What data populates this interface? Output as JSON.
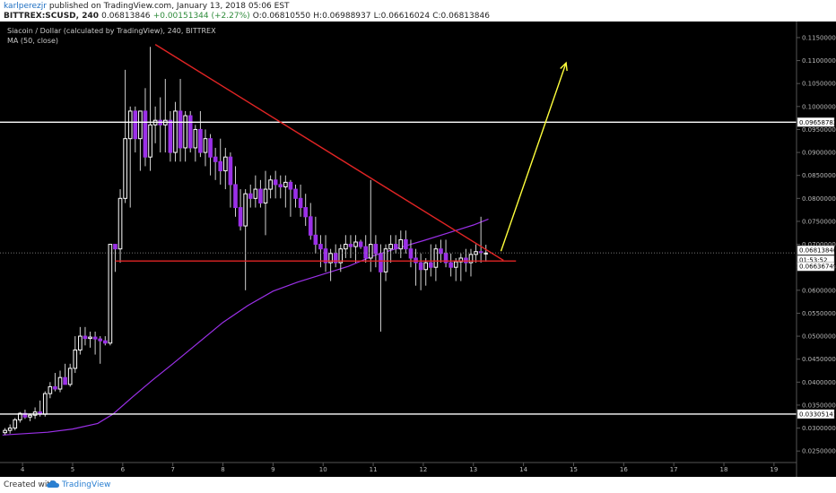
{
  "header": {
    "author": "karlperezjr",
    "published": "published on TradingView.com, January 13, 2018 05:06 EST",
    "symbol": "BITTREX:SCUSD, 240",
    "ohlc_line": "0.06813846",
    "change": "+0.00151344 (+2.27%)",
    "open": "O:0.06810550",
    "high": "H:0.06988937",
    "low": "L:0.06616024",
    "close": "C:0.06813846"
  },
  "legend": {
    "title": "Siacoin / Dollar (calculated by TradingView), 240, BITTREX",
    "indicator": "MA (50, close)"
  },
  "footer": {
    "created_with": "Created with",
    "brand": "TradingView"
  },
  "colors": {
    "background": "#000000",
    "bull": "#ffffff",
    "bear": "#9b30e8",
    "ma": "#9b30e8",
    "support_resistance": "#ffffff",
    "trendline": "#e02424",
    "arrow": "#ffff3c"
  },
  "chart_data": {
    "type": "candlestick",
    "title": "Siacoin / Dollar (calculated by TradingView), 240, BITTREX",
    "x_axis": {
      "unit": "day_of_january_2018",
      "range": [
        3.55,
        19.45
      ],
      "ticks": [
        "4",
        "5",
        "6",
        "7",
        "8",
        "9",
        "10",
        "11",
        "12",
        "13",
        "14",
        "15",
        "16",
        "17",
        "18",
        "19"
      ]
    },
    "y_axis": {
      "range": [
        0.0225,
        0.1185
      ],
      "ticks": [
        "0.11500000",
        "0.11000000",
        "0.10500000",
        "0.10000000",
        "0.09500000",
        "0.09000000",
        "0.08500000",
        "0.08000000",
        "0.07500000",
        "0.07000000",
        "0.06500000",
        "0.06000000",
        "0.05500000",
        "0.05000000",
        "0.04500000",
        "0.04000000",
        "0.03500000",
        "0.03000000",
        "0.02500000"
      ]
    },
    "price_labels": [
      "0.09658783",
      "0.06813846",
      "01:53:52",
      "0.06636749",
      "0.03305141"
    ],
    "horizontal_levels": [
      {
        "value": 0.09658783,
        "color": "#ffffff"
      },
      {
        "value": 0.03305141,
        "color": "#ffffff"
      },
      {
        "value": 0.06636749,
        "color": "#e02424"
      }
    ],
    "trendlines": [
      {
        "x": [
          6.65,
          13.6
        ],
        "y": [
          0.1135,
          0.0665
        ],
        "color": "#e02424"
      },
      {
        "x": [
          5.85,
          13.85
        ],
        "y": [
          0.06365,
          0.06365
        ],
        "color": "#e02424"
      }
    ],
    "projection_arrow": {
      "x": [
        13.55,
        14.85
      ],
      "y": [
        0.0685,
        0.1095
      ],
      "color": "#ffff3c"
    },
    "ma_50": {
      "x": [
        3.6,
        4.5,
        5.0,
        5.5,
        5.8,
        6.2,
        6.6,
        7.0,
        7.5,
        8.0,
        8.5,
        9.0,
        9.5,
        10.0,
        10.5,
        11.0,
        11.5,
        12.0,
        12.5,
        13.0,
        13.3
      ],
      "y": [
        0.0285,
        0.0291,
        0.0298,
        0.031,
        0.033,
        0.0368,
        0.0405,
        0.044,
        0.0485,
        0.053,
        0.0567,
        0.0598,
        0.0618,
        0.0635,
        0.0652,
        0.0675,
        0.0692,
        0.0708,
        0.0725,
        0.0742,
        0.0755
      ]
    },
    "candles": [
      {
        "t": 3.65,
        "o": 0.029,
        "h": 0.03,
        "l": 0.0285,
        "c": 0.0295
      },
      {
        "t": 3.75,
        "o": 0.0295,
        "h": 0.0308,
        "l": 0.0288,
        "c": 0.03
      },
      {
        "t": 3.85,
        "o": 0.03,
        "h": 0.0322,
        "l": 0.0295,
        "c": 0.0318
      },
      {
        "t": 3.95,
        "o": 0.0318,
        "h": 0.0335,
        "l": 0.0312,
        "c": 0.0332
      },
      {
        "t": 4.05,
        "o": 0.0332,
        "h": 0.034,
        "l": 0.032,
        "c": 0.0324
      },
      {
        "t": 4.15,
        "o": 0.0324,
        "h": 0.0332,
        "l": 0.0315,
        "c": 0.0328
      },
      {
        "t": 4.25,
        "o": 0.0328,
        "h": 0.0345,
        "l": 0.032,
        "c": 0.0335
      },
      {
        "t": 4.35,
        "o": 0.0335,
        "h": 0.036,
        "l": 0.0325,
        "c": 0.033
      },
      {
        "t": 4.45,
        "o": 0.033,
        "h": 0.038,
        "l": 0.0325,
        "c": 0.0375
      },
      {
        "t": 4.55,
        "o": 0.0375,
        "h": 0.04,
        "l": 0.0365,
        "c": 0.039
      },
      {
        "t": 4.65,
        "o": 0.039,
        "h": 0.042,
        "l": 0.038,
        "c": 0.0385
      },
      {
        "t": 4.75,
        "o": 0.0385,
        "h": 0.0425,
        "l": 0.0378,
        "c": 0.041
      },
      {
        "t": 4.85,
        "o": 0.041,
        "h": 0.044,
        "l": 0.0398,
        "c": 0.0395
      },
      {
        "t": 4.95,
        "o": 0.0395,
        "h": 0.044,
        "l": 0.039,
        "c": 0.043
      },
      {
        "t": 5.05,
        "o": 0.043,
        "h": 0.05,
        "l": 0.042,
        "c": 0.047
      },
      {
        "t": 5.15,
        "o": 0.047,
        "h": 0.052,
        "l": 0.046,
        "c": 0.05
      },
      {
        "t": 5.25,
        "o": 0.05,
        "h": 0.052,
        "l": 0.048,
        "c": 0.0495
      },
      {
        "t": 5.35,
        "o": 0.0495,
        "h": 0.051,
        "l": 0.0475,
        "c": 0.0498
      },
      {
        "t": 5.45,
        "o": 0.0498,
        "h": 0.051,
        "l": 0.046,
        "c": 0.0494
      },
      {
        "t": 5.55,
        "o": 0.0494,
        "h": 0.05,
        "l": 0.044,
        "c": 0.049
      },
      {
        "t": 5.65,
        "o": 0.049,
        "h": 0.05,
        "l": 0.048,
        "c": 0.0485
      },
      {
        "t": 5.75,
        "o": 0.0485,
        "h": 0.07,
        "l": 0.048,
        "c": 0.07
      },
      {
        "t": 5.85,
        "o": 0.07,
        "h": 0.07,
        "l": 0.064,
        "c": 0.069
      },
      {
        "t": 5.95,
        "o": 0.069,
        "h": 0.082,
        "l": 0.066,
        "c": 0.08
      },
      {
        "t": 6.05,
        "o": 0.08,
        "h": 0.108,
        "l": 0.079,
        "c": 0.093
      },
      {
        "t": 6.15,
        "o": 0.093,
        "h": 0.1,
        "l": 0.078,
        "c": 0.099
      },
      {
        "t": 6.25,
        "o": 0.099,
        "h": 0.1,
        "l": 0.09,
        "c": 0.093
      },
      {
        "t": 6.35,
        "o": 0.093,
        "h": 0.099,
        "l": 0.086,
        "c": 0.099
      },
      {
        "t": 6.45,
        "o": 0.099,
        "h": 0.104,
        "l": 0.087,
        "c": 0.089
      },
      {
        "t": 6.55,
        "o": 0.089,
        "h": 0.113,
        "l": 0.086,
        "c": 0.096
      },
      {
        "t": 6.65,
        "o": 0.096,
        "h": 0.1,
        "l": 0.092,
        "c": 0.097
      },
      {
        "t": 6.75,
        "o": 0.097,
        "h": 0.102,
        "l": 0.09,
        "c": 0.096
      },
      {
        "t": 6.85,
        "o": 0.096,
        "h": 0.106,
        "l": 0.09,
        "c": 0.097
      },
      {
        "t": 6.95,
        "o": 0.097,
        "h": 0.099,
        "l": 0.088,
        "c": 0.09
      },
      {
        "t": 7.05,
        "o": 0.09,
        "h": 0.101,
        "l": 0.088,
        "c": 0.099
      },
      {
        "t": 7.15,
        "o": 0.099,
        "h": 0.106,
        "l": 0.088,
        "c": 0.091
      },
      {
        "t": 7.25,
        "o": 0.091,
        "h": 0.099,
        "l": 0.088,
        "c": 0.098
      },
      {
        "t": 7.35,
        "o": 0.098,
        "h": 0.099,
        "l": 0.09,
        "c": 0.091
      },
      {
        "t": 7.45,
        "o": 0.091,
        "h": 0.096,
        "l": 0.088,
        "c": 0.095
      },
      {
        "t": 7.55,
        "o": 0.095,
        "h": 0.099,
        "l": 0.089,
        "c": 0.09
      },
      {
        "t": 7.65,
        "o": 0.09,
        "h": 0.095,
        "l": 0.087,
        "c": 0.093
      },
      {
        "t": 7.75,
        "o": 0.093,
        "h": 0.094,
        "l": 0.085,
        "c": 0.089
      },
      {
        "t": 7.85,
        "o": 0.089,
        "h": 0.091,
        "l": 0.084,
        "c": 0.088
      },
      {
        "t": 7.95,
        "o": 0.088,
        "h": 0.093,
        "l": 0.083,
        "c": 0.086
      },
      {
        "t": 8.05,
        "o": 0.086,
        "h": 0.091,
        "l": 0.082,
        "c": 0.089
      },
      {
        "t": 8.15,
        "o": 0.089,
        "h": 0.09,
        "l": 0.078,
        "c": 0.083
      },
      {
        "t": 8.25,
        "o": 0.083,
        "h": 0.087,
        "l": 0.076,
        "c": 0.078
      },
      {
        "t": 8.35,
        "o": 0.078,
        "h": 0.082,
        "l": 0.073,
        "c": 0.074
      },
      {
        "t": 8.45,
        "o": 0.074,
        "h": 0.082,
        "l": 0.06,
        "c": 0.081
      },
      {
        "t": 8.55,
        "o": 0.081,
        "h": 0.083,
        "l": 0.078,
        "c": 0.08
      },
      {
        "t": 8.65,
        "o": 0.08,
        "h": 0.085,
        "l": 0.078,
        "c": 0.082
      },
      {
        "t": 8.75,
        "o": 0.082,
        "h": 0.084,
        "l": 0.078,
        "c": 0.079
      },
      {
        "t": 8.85,
        "o": 0.079,
        "h": 0.086,
        "l": 0.072,
        "c": 0.082
      },
      {
        "t": 8.95,
        "o": 0.082,
        "h": 0.085,
        "l": 0.08,
        "c": 0.084
      },
      {
        "t": 9.05,
        "o": 0.084,
        "h": 0.086,
        "l": 0.08,
        "c": 0.083
      },
      {
        "t": 9.15,
        "o": 0.083,
        "h": 0.085,
        "l": 0.08,
        "c": 0.0825
      },
      {
        "t": 9.25,
        "o": 0.0825,
        "h": 0.085,
        "l": 0.078,
        "c": 0.0835
      },
      {
        "t": 9.35,
        "o": 0.0835,
        "h": 0.084,
        "l": 0.076,
        "c": 0.082
      },
      {
        "t": 9.45,
        "o": 0.082,
        "h": 0.083,
        "l": 0.078,
        "c": 0.08
      },
      {
        "t": 9.55,
        "o": 0.08,
        "h": 0.083,
        "l": 0.076,
        "c": 0.078
      },
      {
        "t": 9.65,
        "o": 0.078,
        "h": 0.081,
        "l": 0.074,
        "c": 0.076
      },
      {
        "t": 9.75,
        "o": 0.076,
        "h": 0.079,
        "l": 0.071,
        "c": 0.072
      },
      {
        "t": 9.85,
        "o": 0.072,
        "h": 0.076,
        "l": 0.068,
        "c": 0.07
      },
      {
        "t": 9.95,
        "o": 0.07,
        "h": 0.072,
        "l": 0.065,
        "c": 0.069
      },
      {
        "t": 10.05,
        "o": 0.069,
        "h": 0.072,
        "l": 0.064,
        "c": 0.066
      },
      {
        "t": 10.15,
        "o": 0.066,
        "h": 0.069,
        "l": 0.062,
        "c": 0.068
      },
      {
        "t": 10.25,
        "o": 0.068,
        "h": 0.07,
        "l": 0.065,
        "c": 0.066
      },
      {
        "t": 10.35,
        "o": 0.066,
        "h": 0.07,
        "l": 0.064,
        "c": 0.069
      },
      {
        "t": 10.45,
        "o": 0.069,
        "h": 0.072,
        "l": 0.067,
        "c": 0.07
      },
      {
        "t": 10.55,
        "o": 0.07,
        "h": 0.072,
        "l": 0.067,
        "c": 0.0695
      },
      {
        "t": 10.65,
        "o": 0.0695,
        "h": 0.072,
        "l": 0.066,
        "c": 0.0705
      },
      {
        "t": 10.75,
        "o": 0.0705,
        "h": 0.071,
        "l": 0.069,
        "c": 0.0695
      },
      {
        "t": 10.85,
        "o": 0.0695,
        "h": 0.072,
        "l": 0.066,
        "c": 0.067
      },
      {
        "t": 10.95,
        "o": 0.067,
        "h": 0.084,
        "l": 0.064,
        "c": 0.07
      },
      {
        "t": 11.05,
        "o": 0.07,
        "h": 0.072,
        "l": 0.065,
        "c": 0.068
      },
      {
        "t": 11.15,
        "o": 0.068,
        "h": 0.07,
        "l": 0.051,
        "c": 0.064
      },
      {
        "t": 11.25,
        "o": 0.064,
        "h": 0.07,
        "l": 0.062,
        "c": 0.069
      },
      {
        "t": 11.35,
        "o": 0.069,
        "h": 0.072,
        "l": 0.066,
        "c": 0.07
      },
      {
        "t": 11.45,
        "o": 0.07,
        "h": 0.072,
        "l": 0.068,
        "c": 0.069
      },
      {
        "t": 11.55,
        "o": 0.069,
        "h": 0.073,
        "l": 0.067,
        "c": 0.071
      },
      {
        "t": 11.65,
        "o": 0.071,
        "h": 0.073,
        "l": 0.068,
        "c": 0.069
      },
      {
        "t": 11.75,
        "o": 0.069,
        "h": 0.071,
        "l": 0.065,
        "c": 0.067
      },
      {
        "t": 11.85,
        "o": 0.067,
        "h": 0.069,
        "l": 0.061,
        "c": 0.066
      },
      {
        "t": 11.95,
        "o": 0.066,
        "h": 0.068,
        "l": 0.06,
        "c": 0.0645
      },
      {
        "t": 12.05,
        "o": 0.0645,
        "h": 0.067,
        "l": 0.061,
        "c": 0.066
      },
      {
        "t": 12.15,
        "o": 0.066,
        "h": 0.07,
        "l": 0.063,
        "c": 0.065
      },
      {
        "t": 12.25,
        "o": 0.065,
        "h": 0.07,
        "l": 0.062,
        "c": 0.069
      },
      {
        "t": 12.35,
        "o": 0.069,
        "h": 0.071,
        "l": 0.066,
        "c": 0.068
      },
      {
        "t": 12.45,
        "o": 0.068,
        "h": 0.071,
        "l": 0.065,
        "c": 0.066
      },
      {
        "t": 12.55,
        "o": 0.066,
        "h": 0.068,
        "l": 0.063,
        "c": 0.065
      },
      {
        "t": 12.65,
        "o": 0.065,
        "h": 0.067,
        "l": 0.062,
        "c": 0.0662
      },
      {
        "t": 12.75,
        "o": 0.0662,
        "h": 0.068,
        "l": 0.062,
        "c": 0.067
      },
      {
        "t": 12.85,
        "o": 0.067,
        "h": 0.069,
        "l": 0.064,
        "c": 0.066
      },
      {
        "t": 12.95,
        "o": 0.066,
        "h": 0.069,
        "l": 0.063,
        "c": 0.0678
      },
      {
        "t": 13.05,
        "o": 0.0678,
        "h": 0.07,
        "l": 0.066,
        "c": 0.0684
      },
      {
        "t": 13.15,
        "o": 0.0684,
        "h": 0.076,
        "l": 0.066,
        "c": 0.0682
      },
      {
        "t": 13.25,
        "o": 0.0681,
        "h": 0.0699,
        "l": 0.0662,
        "c": 0.0681
      }
    ]
  }
}
